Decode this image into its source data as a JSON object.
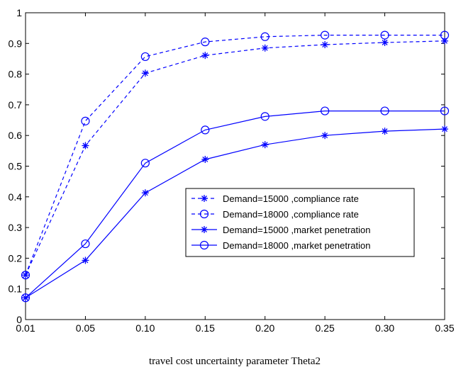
{
  "chart_data": {
    "type": "line",
    "title": "",
    "xlabel": "travel cost uncertainty parameter Theta2",
    "ylabel": "",
    "x_tick_labels": [
      "0.01",
      "0.05",
      "0.10",
      "0.15",
      "0.20",
      "0.25",
      "0.30",
      "0.35"
    ],
    "y_ticks": [
      0,
      0.1,
      0.2,
      0.3,
      0.4,
      0.5,
      0.6,
      0.7,
      0.8,
      0.9,
      1
    ],
    "y_tick_labels": [
      "0",
      "0.1",
      "0.2",
      "0.3",
      "0.4",
      "0.5",
      "0.6",
      "0.7",
      "0.8",
      "0.9",
      "1"
    ],
    "ylim": [
      0,
      1
    ],
    "grid": false,
    "legend_position": "center-right",
    "series": [
      {
        "name": "Demand=15000 ,compliance rate",
        "values": [
          0.145,
          0.567,
          0.803,
          0.861,
          0.885,
          0.896,
          0.903,
          0.908
        ],
        "line": "dashed",
        "marker": "star",
        "color": "#0000ff"
      },
      {
        "name": "Demand=18000 ,compliance rate",
        "values": [
          0.145,
          0.647,
          0.857,
          0.905,
          0.922,
          0.927,
          0.927,
          0.927
        ],
        "line": "dashed",
        "marker": "circle",
        "color": "#0000ff"
      },
      {
        "name": "Demand=15000 ,market penetration",
        "values": [
          0.071,
          0.193,
          0.413,
          0.522,
          0.57,
          0.6,
          0.614,
          0.621
        ],
        "line": "solid",
        "marker": "star",
        "color": "#0000ff"
      },
      {
        "name": "Demand=18000 ,market penetration",
        "values": [
          0.071,
          0.247,
          0.51,
          0.618,
          0.662,
          0.68,
          0.68,
          0.68
        ],
        "line": "solid",
        "marker": "circle",
        "color": "#0000ff"
      }
    ]
  }
}
